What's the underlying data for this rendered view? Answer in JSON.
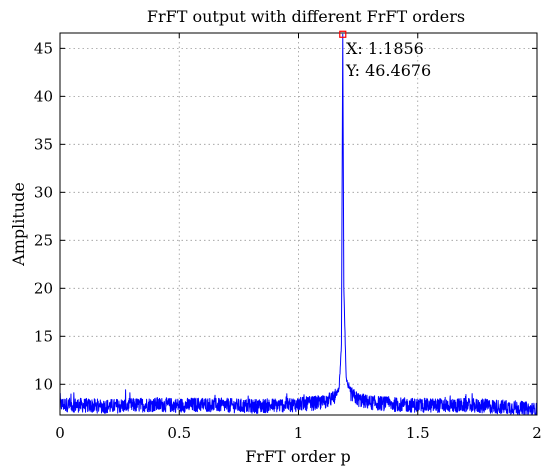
{
  "chart_data": {
    "type": "line",
    "title": "FrFT output with different FrFT orders",
    "xlabel": "FrFT order p",
    "ylabel": "Amplitude",
    "xlim": [
      0,
      2
    ],
    "ylim": [
      6.8,
      46.6
    ],
    "xticks": [
      0,
      0.5,
      1,
      1.5,
      2
    ],
    "xtick_labels": [
      "0",
      "0.5",
      "1",
      "1.5",
      "2"
    ],
    "yticks": [
      10,
      15,
      20,
      25,
      30,
      35,
      40,
      45
    ],
    "ytick_labels": [
      "10",
      "15",
      "20",
      "25",
      "30",
      "35",
      "40",
      "45"
    ],
    "grid": true,
    "series": [
      {
        "color": "#0000ff",
        "description": "Noise floor about 7-8.5 across 0 to 2, sharp peak at p = 1.1856 reaching 46.4676",
        "peak_x": 1.1856,
        "peak_y": 46.4676,
        "baseline_y": 7.8,
        "noise_range": [
          7.0,
          9.6
        ],
        "points": [
          [
            0.0,
            7.9
          ],
          [
            0.1,
            7.8
          ],
          [
            0.2,
            7.7
          ],
          [
            0.3,
            7.8
          ],
          [
            0.4,
            7.9
          ],
          [
            0.5,
            7.8
          ],
          [
            0.6,
            7.9
          ],
          [
            0.7,
            7.8
          ],
          [
            0.8,
            7.7
          ],
          [
            0.9,
            7.8
          ],
          [
            1.0,
            7.9
          ],
          [
            1.1,
            8.1
          ],
          [
            1.15,
            8.6
          ],
          [
            1.17,
            9.5
          ],
          [
            1.18,
            14.0
          ],
          [
            1.1856,
            46.4676
          ],
          [
            1.19,
            20.0
          ],
          [
            1.2,
            10.5
          ],
          [
            1.22,
            9.0
          ],
          [
            1.25,
            8.4
          ],
          [
            1.3,
            8.1
          ],
          [
            1.4,
            7.9
          ],
          [
            1.5,
            7.8
          ],
          [
            1.6,
            7.8
          ],
          [
            1.7,
            7.8
          ],
          [
            1.8,
            7.7
          ],
          [
            1.9,
            7.6
          ],
          [
            2.0,
            7.3
          ]
        ]
      }
    ],
    "datatip": {
      "x_text": "X: 1.1856",
      "y_text": "Y: 46.4676",
      "marker_color": "#ff0000"
    }
  }
}
